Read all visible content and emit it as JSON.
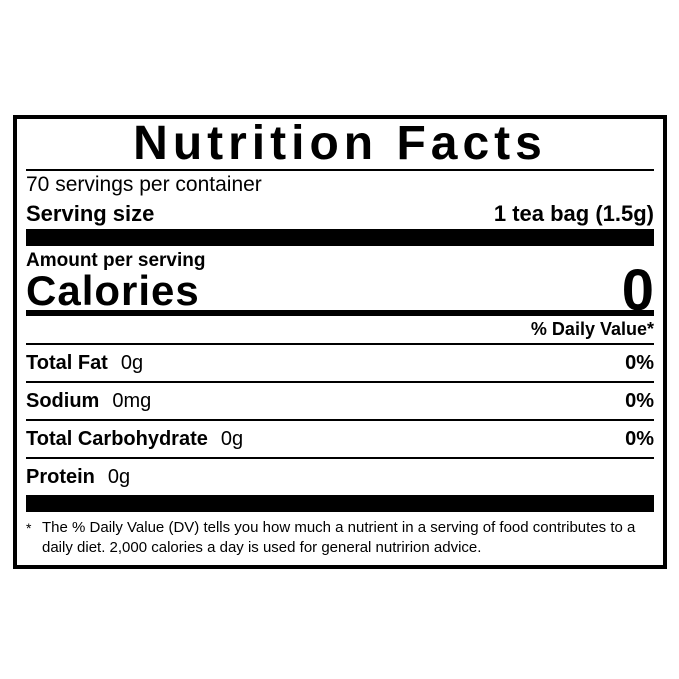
{
  "label": {
    "title": "Nutrition Facts",
    "servings_per_container": "70 servings per container",
    "serving_size": {
      "label": "Serving size",
      "value": "1 tea bag (1.5g)"
    },
    "amount_per_serving": "Amount per serving",
    "calories": {
      "label": "Calories",
      "value": "0"
    },
    "daily_value_header": "% Daily Value*",
    "nutrients": [
      {
        "name": "Total Fat",
        "amount": "0g",
        "dv": "0%"
      },
      {
        "name": "Sodium",
        "amount": "0mg",
        "dv": "0%"
      },
      {
        "name": "Total Carbohydrate",
        "amount": "0g",
        "dv": "0%"
      },
      {
        "name": "Protein",
        "amount": "0g",
        "dv": ""
      }
    ],
    "footnote": {
      "marker": "*",
      "line1": "The % Daily Value (DV) tells you how much a nutrient in a serving of food contributes to a",
      "line2": "daily diet. 2,000 calories a day is used for general nutririon advice."
    }
  },
  "colors": {
    "text": "#000000",
    "background": "#ffffff"
  }
}
